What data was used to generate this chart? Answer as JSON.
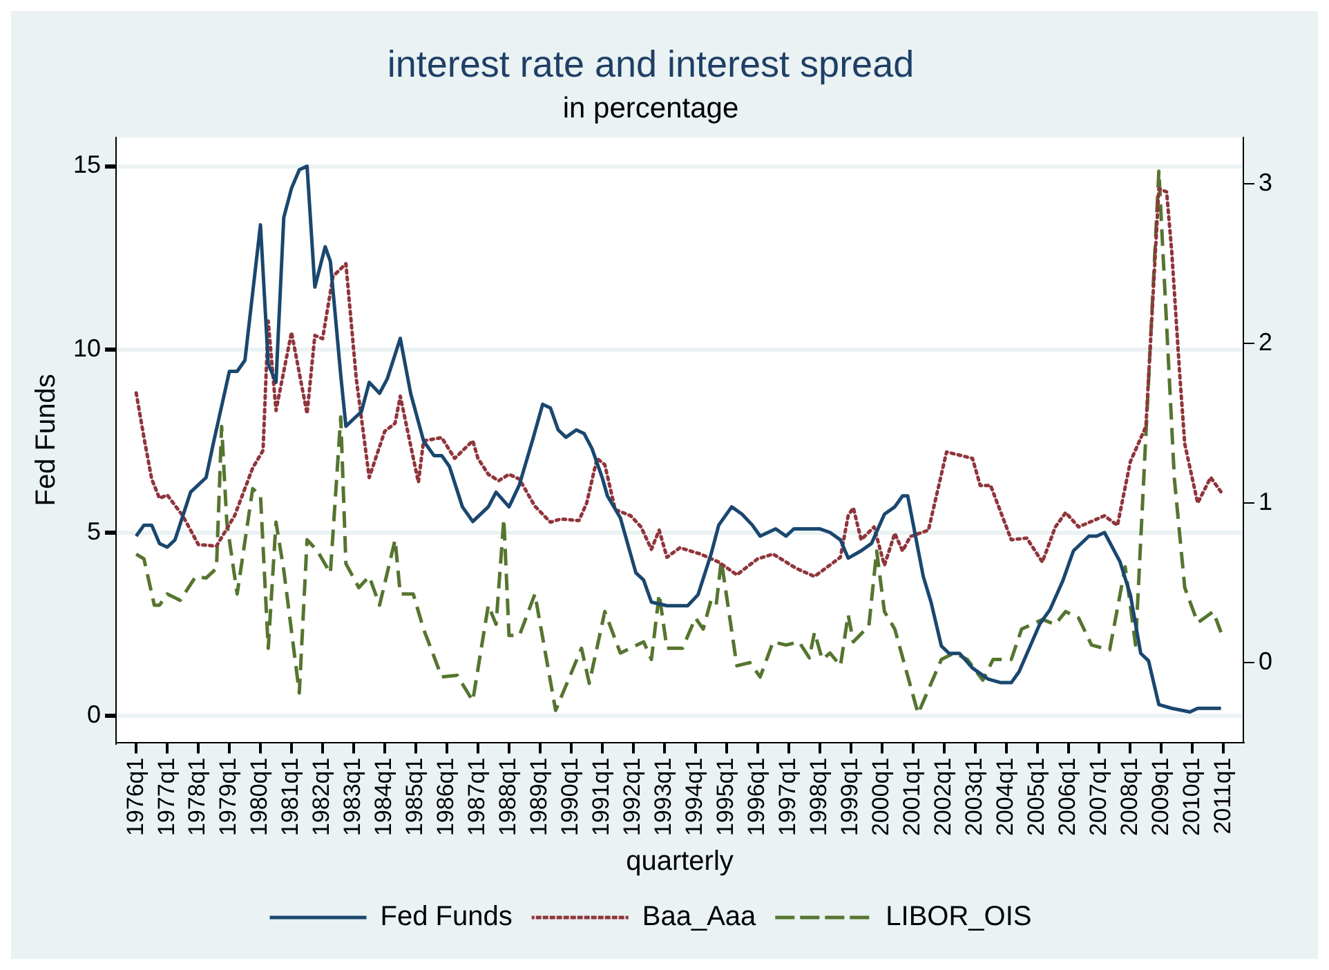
{
  "chart_data": {
    "type": "line",
    "title": "interest rate and interest spread",
    "subtitle": "in percentage",
    "xlabel": "quarterly",
    "ylabel": "Fed Funds",
    "xlim": [
      "1975-05-08",
      "2011-08-20"
    ],
    "ylim": [
      -0.73,
      15.78
    ],
    "yticks": [
      0,
      5,
      10,
      15
    ],
    "y2lim": [
      -0.5,
      3.29
    ],
    "y2ticks": [
      0,
      1,
      2,
      3
    ],
    "xticks": [
      {
        "value": "1976-01",
        "label": "1976q1"
      },
      {
        "value": "1977-01",
        "label": "1977q1"
      },
      {
        "value": "1978-01",
        "label": "1978q1"
      },
      {
        "value": "1979-01",
        "label": "1979q1"
      },
      {
        "value": "1980-01",
        "label": "1980q1"
      },
      {
        "value": "1981-01",
        "label": "1981q1"
      },
      {
        "value": "1982-01",
        "label": "1982q1"
      },
      {
        "value": "1983-01",
        "label": "1983q1"
      },
      {
        "value": "1984-01",
        "label": "1984q1"
      },
      {
        "value": "1985-01",
        "label": "1985q1"
      },
      {
        "value": "1986-01",
        "label": "1986q1"
      },
      {
        "value": "1987-01",
        "label": "1987q1"
      },
      {
        "value": "1988-01",
        "label": "1988q1"
      },
      {
        "value": "1989-01",
        "label": "1989q1"
      },
      {
        "value": "1990-01",
        "label": "1990q1"
      },
      {
        "value": "1991-01",
        "label": "1991q1"
      },
      {
        "value": "1992-01",
        "label": "1992q1"
      },
      {
        "value": "1993-01",
        "label": "1993q1"
      },
      {
        "value": "1994-01",
        "label": "1994q1"
      },
      {
        "value": "1995-01",
        "label": "1995q1"
      },
      {
        "value": "1996-01",
        "label": "1996q1"
      },
      {
        "value": "1997-01",
        "label": "1997q1"
      },
      {
        "value": "1998-01",
        "label": "1998q1"
      },
      {
        "value": "1999-01",
        "label": "1999q1"
      },
      {
        "value": "2000-01",
        "label": "2000q1"
      },
      {
        "value": "2001-01",
        "label": "2001q1"
      },
      {
        "value": "2002-01",
        "label": "2002q1"
      },
      {
        "value": "2003-01",
        "label": "2003q1"
      },
      {
        "value": "2004-01",
        "label": "2004q1"
      },
      {
        "value": "2005-01",
        "label": "2005q1"
      },
      {
        "value": "2006-01",
        "label": "2006q1"
      },
      {
        "value": "2007-01",
        "label": "2007q1"
      },
      {
        "value": "2008-01",
        "label": "2008q1"
      },
      {
        "value": "2009-01",
        "label": "2009q1"
      },
      {
        "value": "2010-01",
        "label": "2010q1"
      },
      {
        "value": "2011-01",
        "label": "2011q1"
      }
    ],
    "grid": "y",
    "legend": "bottom",
    "marker": "none",
    "series": [
      {
        "name": "Fed Funds",
        "color": "#1a476f",
        "line_style": "solid",
        "x": [
          "1976-01",
          "1976-04",
          "1976-07",
          "1976-10",
          "1977-01",
          "1977-04",
          "1977-10",
          "1978-04",
          "1978-07",
          "1979-01",
          "1979-04",
          "1979-07",
          "1980-01",
          "1980-04",
          "1980-07",
          "1980-10",
          "1981-01",
          "1981-04",
          "1981-07",
          "1981-10",
          "1982-02",
          "1982-04",
          "1982-08",
          "1982-10",
          "1983-04",
          "1983-07",
          "1983-11",
          "1984-02",
          "1984-07",
          "1984-11",
          "1985-04",
          "1985-08",
          "1985-11",
          "1986-02",
          "1986-07",
          "1986-11",
          "1987-05",
          "1987-08",
          "1988-01",
          "1988-05",
          "1988-10",
          "1989-02",
          "1989-05",
          "1989-08",
          "1989-11",
          "1990-03",
          "1990-06",
          "1990-09",
          "1991-01",
          "1991-03",
          "1991-08",
          "1992-02",
          "1992-05",
          "1992-08",
          "1993-02",
          "1993-10",
          "1994-02",
          "1994-07",
          "1994-10",
          "1995-03",
          "1995-07",
          "1995-11",
          "1996-02",
          "1996-08",
          "1996-12",
          "1997-03",
          "1998-01",
          "1998-05",
          "1998-09",
          "1998-12",
          "1999-05",
          "1999-09",
          "2000-02",
          "2000-06",
          "2000-09",
          "2000-11",
          "2001-05",
          "2001-08",
          "2001-12",
          "2002-03",
          "2002-07",
          "2002-12",
          "2003-06",
          "2003-11",
          "2004-03",
          "2004-06",
          "2005-02",
          "2005-06",
          "2005-11",
          "2006-03",
          "2006-09",
          "2006-12",
          "2007-03",
          "2007-09",
          "2008-01",
          "2008-05",
          "2008-08",
          "2008-12",
          "2009-05",
          "2009-12",
          "2010-03",
          "2010-12"
        ],
        "values": [
          4.9,
          5.2,
          5.2,
          4.7,
          4.6,
          4.8,
          6.1,
          6.5,
          7.5,
          9.4,
          9.4,
          9.7,
          13.4,
          9.6,
          9.1,
          13.6,
          14.4,
          14.9,
          15.0,
          11.7,
          12.8,
          12.4,
          9.3,
          7.9,
          8.3,
          9.1,
          8.8,
          9.2,
          10.3,
          8.8,
          7.5,
          7.1,
          7.1,
          6.8,
          5.7,
          5.3,
          5.7,
          6.1,
          5.7,
          6.3,
          7.5,
          8.5,
          8.4,
          7.8,
          7.6,
          7.8,
          7.7,
          7.3,
          6.5,
          6.0,
          5.4,
          3.9,
          3.7,
          3.1,
          3.0,
          3.0,
          3.3,
          4.4,
          5.2,
          5.7,
          5.5,
          5.2,
          4.9,
          5.1,
          4.9,
          5.1,
          5.1,
          5.0,
          4.8,
          4.3,
          4.5,
          4.7,
          5.5,
          5.7,
          6.0,
          6.0,
          3.8,
          3.1,
          1.9,
          1.7,
          1.7,
          1.3,
          1.0,
          0.9,
          0.9,
          1.2,
          2.5,
          2.9,
          3.7,
          4.5,
          4.9,
          4.9,
          5.0,
          4.2,
          3.3,
          1.7,
          1.5,
          0.3,
          0.2,
          0.1,
          0.2,
          0.2
        ]
      },
      {
        "name": "Baa_Aaa",
        "color": "#90353b",
        "line_style": "dotted",
        "axis": "y2",
        "x": [
          "1976-01",
          "1976-04",
          "1976-07",
          "1976-10",
          "1977-01",
          "1977-07",
          "1978-01",
          "1978-08",
          "1979-03",
          "1979-10",
          "1980-02",
          "1980-04",
          "1980-07",
          "1981-01",
          "1981-07",
          "1981-10",
          "1982-01",
          "1982-05",
          "1982-10",
          "1983-02",
          "1983-07",
          "1984-01",
          "1984-05",
          "1984-07",
          "1985-02",
          "1985-04",
          "1985-11",
          "1986-04",
          "1986-11",
          "1987-01",
          "1987-05",
          "1987-09",
          "1988-01",
          "1988-05",
          "1988-11",
          "1989-05",
          "1989-09",
          "1990-04",
          "1990-07",
          "1990-11",
          "1991-02",
          "1991-06",
          "1991-12",
          "1992-04",
          "1992-08",
          "1992-11",
          "1993-02",
          "1993-07",
          "1994-03",
          "1994-10",
          "1995-05",
          "1996-01",
          "1996-07",
          "1997-04",
          "1997-11",
          "1998-09",
          "1998-12",
          "1999-02",
          "1999-05",
          "1999-10",
          "2000-02",
          "2000-06",
          "2000-09",
          "2000-12",
          "2001-07",
          "2002-02",
          "2002-12",
          "2003-03",
          "2003-07",
          "2004-03",
          "2004-09",
          "2005-03",
          "2005-08",
          "2005-12",
          "2006-05",
          "2007-03",
          "2007-08",
          "2008-01",
          "2008-07",
          "2008-12",
          "2009-03",
          "2009-05",
          "2009-08",
          "2009-10",
          "2010-03",
          "2010-08",
          "2010-12"
        ],
        "values": [
          1.69,
          1.41,
          1.15,
          1.03,
          1.05,
          0.92,
          0.74,
          0.73,
          0.92,
          1.22,
          1.33,
          2.14,
          1.58,
          2.07,
          1.56,
          2.05,
          2.03,
          2.42,
          2.5,
          1.78,
          1.16,
          1.45,
          1.5,
          1.67,
          1.13,
          1.39,
          1.41,
          1.28,
          1.39,
          1.28,
          1.18,
          1.14,
          1.18,
          1.15,
          0.98,
          0.88,
          0.9,
          0.89,
          1.0,
          1.28,
          1.24,
          0.96,
          0.92,
          0.85,
          0.71,
          0.83,
          0.66,
          0.72,
          0.68,
          0.63,
          0.55,
          0.65,
          0.68,
          0.59,
          0.54,
          0.66,
          0.92,
          0.97,
          0.77,
          0.85,
          0.61,
          0.81,
          0.7,
          0.79,
          0.83,
          1.32,
          1.28,
          1.11,
          1.11,
          0.77,
          0.78,
          0.63,
          0.85,
          0.94,
          0.85,
          0.92,
          0.86,
          1.26,
          1.48,
          2.97,
          2.95,
          2.57,
          1.82,
          1.37,
          1.0,
          1.16,
          1.07
        ]
      },
      {
        "name": "LIBOR_OIS",
        "color": "#55752f",
        "line_style": "dashed",
        "axis": "y2",
        "x": [
          "1976-01",
          "1976-04",
          "1976-08",
          "1976-10",
          "1977-01",
          "1977-06",
          "1977-12",
          "1978-04",
          "1978-08",
          "1978-10",
          "1978-12",
          "1979-04",
          "1979-10",
          "1980-01",
          "1980-04",
          "1980-07",
          "1980-10",
          "1981-04",
          "1981-07",
          "1981-11",
          "1982-04",
          "1982-08",
          "1982-10",
          "1983-03",
          "1983-07",
          "1983-11",
          "1984-05",
          "1984-07",
          "1984-12",
          "1985-04",
          "1985-11",
          "1986-05",
          "1986-11",
          "1987-05",
          "1987-08",
          "1987-11",
          "1988-01",
          "1988-05",
          "1988-11",
          "1989-07",
          "1990-05",
          "1990-08",
          "1991-02",
          "1991-08",
          "1992-05",
          "1992-08",
          "1992-11",
          "1993-02",
          "1993-08",
          "1994-01",
          "1994-04",
          "1994-07",
          "1994-09",
          "1994-11",
          "1995-05",
          "1995-10",
          "1996-02",
          "1996-07",
          "1996-12",
          "1997-05",
          "1997-09",
          "1997-11",
          "1998-02",
          "1998-05",
          "1998-09",
          "1998-12",
          "1999-02",
          "1999-08",
          "1999-11",
          "2000-02",
          "2000-06",
          "2001-03",
          "2001-12",
          "2002-05",
          "2002-10",
          "2003-04",
          "2003-08",
          "2004-03",
          "2004-07",
          "2005-03",
          "2005-08",
          "2005-12",
          "2006-05",
          "2006-10",
          "2007-05",
          "2007-11",
          "2008-03",
          "2008-12",
          "2009-06",
          "2009-10",
          "2010-03",
          "2010-09",
          "2010-12"
        ],
        "values": [
          0.68,
          0.65,
          0.36,
          0.36,
          0.43,
          0.39,
          0.54,
          0.53,
          0.59,
          1.48,
          0.88,
          0.43,
          1.09,
          1.05,
          0.09,
          0.88,
          0.58,
          -0.19,
          0.77,
          0.7,
          0.56,
          1.54,
          0.62,
          0.47,
          0.54,
          0.36,
          0.77,
          0.43,
          0.43,
          0.21,
          -0.09,
          -0.08,
          -0.24,
          0.36,
          0.24,
          0.9,
          0.17,
          0.17,
          0.43,
          -0.3,
          0.09,
          -0.13,
          0.32,
          0.06,
          0.13,
          0.02,
          0.43,
          0.09,
          0.09,
          0.28,
          0.21,
          0.39,
          0.36,
          0.64,
          -0.02,
          0.0,
          -0.09,
          0.13,
          0.11,
          0.13,
          0.03,
          0.19,
          0.02,
          0.06,
          -0.02,
          0.3,
          0.13,
          0.23,
          0.7,
          0.32,
          0.21,
          -0.32,
          0.02,
          0.06,
          0.02,
          -0.11,
          0.02,
          0.02,
          0.21,
          0.27,
          0.24,
          0.32,
          0.28,
          0.11,
          0.08,
          0.6,
          0.11,
          3.08,
          1.15,
          0.47,
          0.25,
          0.32,
          0.19
        ]
      }
    ]
  }
}
